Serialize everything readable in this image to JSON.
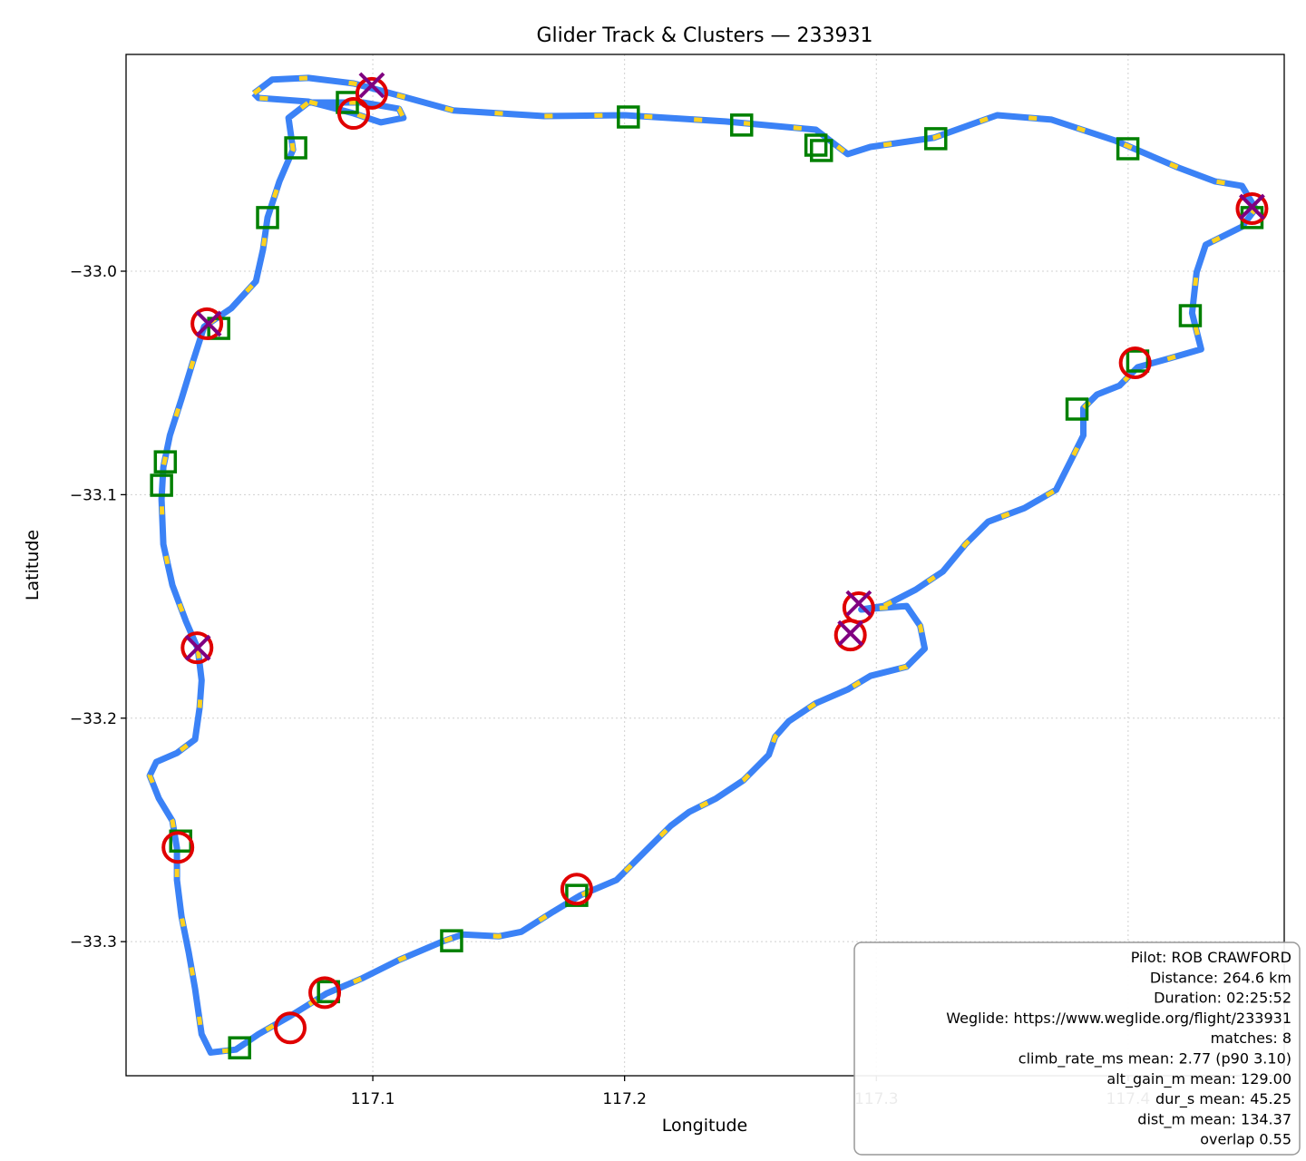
{
  "chart_data": {
    "type": "scatter",
    "title": "Glider Track & Clusters — 233931",
    "x_label": "Longitude",
    "y_label": "Latitude",
    "xlim": [
      117.002,
      117.462
    ],
    "ylim": [
      -33.36,
      -32.903
    ],
    "xticks": [
      117.1,
      117.2,
      117.3,
      117.4
    ],
    "yticks": [
      {
        "value": -33.0,
        "label": "−33.0"
      },
      {
        "value": -33.1,
        "label": "−33.1"
      },
      {
        "value": -33.2,
        "label": "−33.2"
      },
      {
        "value": -33.3,
        "label": "−33.3"
      }
    ],
    "grid": true,
    "series": [
      {
        "marker": "line",
        "color": "#3b82f6",
        "highlight_color": "#ffd21f",
        "x": [
          117.0528,
          117.06,
          117.0744,
          117.0924,
          117.1032,
          117.132,
          117.168,
          117.2,
          117.24,
          117.276,
          117.2886,
          117.2976,
          117.3228,
          117.348,
          117.3696,
          117.3948,
          117.42,
          117.4344,
          117.4452,
          117.4506,
          117.4452,
          117.4308,
          117.4272,
          117.4254,
          117.429,
          117.4164,
          117.4038,
          117.3966,
          117.3876,
          117.3822,
          117.3822,
          117.3768,
          117.3714,
          117.3588,
          117.3444,
          117.3354,
          117.3264,
          117.3156,
          117.303,
          117.294,
          117.312,
          117.3174,
          117.3192,
          117.312,
          117.2976,
          117.2886,
          117.276,
          117.2652,
          117.2598,
          117.2573,
          117.2472,
          117.2364,
          117.2256,
          117.2184,
          117.2076,
          117.1968,
          117.1824,
          117.1716,
          117.159,
          117.15,
          117.1356,
          117.1284,
          117.1104,
          117.096,
          117.0816,
          117.0672,
          117.0546,
          117.0456,
          117.0356,
          117.032,
          117.0294,
          117.0269,
          117.024,
          117.0222,
          117.0222,
          117.0204,
          117.015,
          117.0114,
          117.014,
          117.0222,
          117.0294,
          117.0312,
          117.032,
          117.0305,
          117.0258,
          117.0204,
          117.0168,
          117.0161,
          117.0168,
          117.0194,
          117.024,
          117.0284,
          117.033,
          117.0438,
          117.0536,
          117.0564,
          117.0582,
          117.0629,
          117.0683,
          117.0665,
          117.0744,
          117.096,
          117.1104,
          117.1122,
          117.1032,
          117.0924,
          117.0744,
          117.0546,
          117.0528
        ],
        "y": [
          -32.9204,
          -32.9143,
          -32.9135,
          -32.916,
          -32.9192,
          -32.9281,
          -32.9306,
          -32.9302,
          -32.933,
          -32.9367,
          -32.9476,
          -32.9444,
          -32.9403,
          -32.9302,
          -32.9322,
          -32.9415,
          -32.9537,
          -32.9598,
          -32.9618,
          -32.972,
          -32.9801,
          -32.9882,
          -33.0004,
          -33.0187,
          -33.0349,
          -33.039,
          -33.043,
          -33.0512,
          -33.0552,
          -33.0613,
          -33.0735,
          -33.0857,
          -33.0978,
          -33.106,
          -33.1121,
          -33.1222,
          -33.1344,
          -33.1425,
          -33.1498,
          -33.1514,
          -33.1498,
          -33.1587,
          -33.1689,
          -33.177,
          -33.1811,
          -33.1872,
          -33.1933,
          -33.2014,
          -33.2083,
          -33.2164,
          -33.2278,
          -33.2359,
          -33.242,
          -33.2481,
          -33.2602,
          -33.2724,
          -33.2793,
          -33.2866,
          -33.2956,
          -33.2976,
          -33.2968,
          -33.2996,
          -33.3082,
          -33.3163,
          -33.3232,
          -33.3333,
          -33.3414,
          -33.3483,
          -33.3496,
          -33.3414,
          -33.3211,
          -33.3049,
          -33.2887,
          -33.2724,
          -33.2582,
          -33.246,
          -33.2359,
          -33.2257,
          -33.2196,
          -33.2156,
          -33.2095,
          -33.1953,
          -33.1831,
          -33.1689,
          -33.1567,
          -33.1405,
          -33.1222,
          -33.1019,
          -33.0877,
          -33.0735,
          -33.0572,
          -33.041,
          -33.0248,
          -33.0166,
          -33.0045,
          -32.9903,
          -32.976,
          -32.9598,
          -32.9456,
          -32.9314,
          -32.9245,
          -32.9245,
          -32.9273,
          -32.9314,
          -32.9334,
          -32.9294,
          -32.9241,
          -32.9225,
          -32.9204
        ]
      },
      {
        "marker": "square",
        "color": "#008000",
        "x": [
          117.0899,
          117.0694,
          117.0582,
          117.0388,
          117.0176,
          117.0161,
          117.0237,
          117.0471,
          117.0824,
          117.1313,
          117.181,
          117.2015,
          117.2465,
          117.276,
          117.2782,
          117.3236,
          117.3999,
          117.4492,
          117.4247,
          117.4038,
          117.3797
        ],
        "y": [
          -32.9245,
          -32.9448,
          -32.976,
          -33.0256,
          -33.0853,
          -33.0958,
          -33.255,
          -33.3475,
          -33.3224,
          -33.2996,
          -33.2793,
          -32.931,
          -32.9346,
          -32.9436,
          -32.946,
          -32.9407,
          -32.9452,
          -32.976,
          -33.0199,
          -33.0402,
          -33.0617
        ]
      },
      {
        "marker": "circle",
        "color": "#e00000",
        "x": [
          117.0996,
          117.0924,
          117.0341,
          117.0302,
          117.0226,
          117.0672,
          117.0809,
          117.181,
          117.293,
          117.2897,
          117.4028,
          117.4492
        ],
        "y": [
          -32.9204,
          -32.9294,
          -33.0235,
          -33.1685,
          -33.2578,
          -33.3386,
          -33.3228,
          -33.2765,
          -33.1506,
          -33.1628,
          -33.041,
          -32.972
        ]
      },
      {
        "marker": "x",
        "color": "#800080",
        "x": [
          117.0996,
          117.0348,
          117.0305,
          117.293,
          117.2897,
          117.4492
        ],
        "y": [
          -32.9168,
          -33.0235,
          -33.1685,
          -33.1486,
          -33.162,
          -32.9712
        ]
      }
    ],
    "annotation": [
      "Pilot: ROB CRAWFORD",
      "Distance: 264.6 km",
      "Duration: 02:25:52",
      "Weglide: https://www.weglide.org/flight/233931",
      "matches: 8",
      "climb_rate_ms mean: 2.77 (p90 3.10)",
      "alt_gain_m mean: 129.00",
      "dur_s mean: 45.25",
      "dist_m mean: 134.37",
      "overlap 0.55"
    ]
  }
}
